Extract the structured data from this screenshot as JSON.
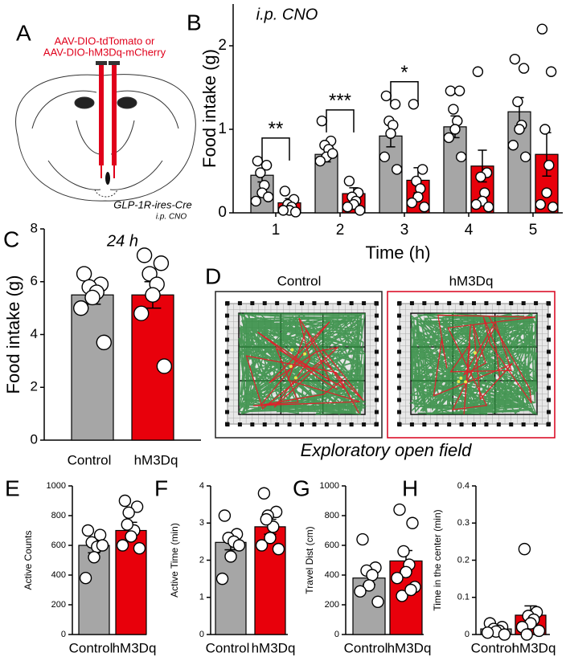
{
  "panels": [
    "A",
    "B",
    "C",
    "D",
    "E",
    "F",
    "G",
    "H"
  ],
  "panel_a": {
    "virus_labels": [
      "AAV-DIO-tdTomato or",
      "AAV-DIO-hM3Dq-mCherry"
    ],
    "mouse_line": "GLP-1R-ires-Cre",
    "treatment": "i.p. CNO"
  },
  "panel_d": {
    "groups": [
      "Control",
      "hM3Dq"
    ],
    "caption": "Exploratory open field"
  },
  "chart_data": [
    {
      "type": "grouped_bar",
      "subtitle": "i.p. CNO",
      "x_label": "Time (h)",
      "y_label": "Food intake (g)",
      "categories": [
        "1",
        "2",
        "3",
        "4",
        "5"
      ],
      "annotations": [
        "**",
        "***",
        "*",
        null,
        null
      ],
      "ylim": [
        0,
        2.5
      ],
      "yticks": [
        0,
        1,
        2
      ],
      "series": [
        {
          "color": "#a6a6a6",
          "values": [
            0.45,
            0.7,
            0.92,
            1.03,
            1.21
          ],
          "errors": [
            0.08,
            0.09,
            0.13,
            0.13,
            0.17
          ],
          "points": [
            [
              0.62,
              0.57,
              0.48,
              0.33,
              0.24,
              0.14,
              0.19
            ],
            [
              1.1,
              0.86,
              0.81,
              0.76,
              0.67,
              0.62,
              0.71
            ],
            [
              1.4,
              1.3,
              1.1,
              1.05,
              0.95,
              0.67,
              0.52
            ],
            [
              1.46,
              1.46,
              1.24,
              1.1,
              1.0,
              0.9,
              0.67
            ],
            [
              1.84,
              1.73,
              1.33,
              1.05,
              1.0,
              0.81,
              0.67
            ]
          ]
        },
        {
          "color": "#e8000b",
          "values": [
            0.12,
            0.23,
            0.39,
            0.56,
            0.7
          ],
          "errors": [
            0.05,
            0.07,
            0.15,
            0.19,
            0.26
          ],
          "points": [
            [
              0.26,
              0.16,
              0.1,
              0.07,
              0.03,
              0.03,
              0.01
            ],
            [
              0.38,
              0.24,
              0.19,
              0.14,
              0.1,
              0.07,
              0.03
            ],
            [
              1.3,
              0.52,
              0.38,
              0.29,
              0.19,
              0.12,
              0.07
            ],
            [
              1.69,
              0.48,
              0.43,
              0.24,
              0.14,
              0.1,
              0.07
            ],
            [
              2.2,
              1.69,
              1.0,
              0.57,
              0.24,
              0.1,
              0.07
            ]
          ]
        }
      ]
    },
    {
      "type": "bar",
      "title": "24 h",
      "y_label": "Food intake (g)",
      "categories": [
        "Control",
        "hM3Dq"
      ],
      "colors": [
        "#a6a6a6",
        "#e8000b"
      ],
      "values": [
        5.5,
        5.5
      ],
      "errors": [
        0.35,
        0.5
      ],
      "points": [
        [
          6.3,
          5.9,
          5.8,
          5.6,
          5.4,
          5.0,
          3.7
        ],
        [
          7.0,
          6.7,
          6.3,
          5.9,
          5.5,
          4.8,
          2.8
        ]
      ],
      "ylim": [
        0,
        8
      ],
      "yticks": [
        0,
        2,
        4,
        6,
        8
      ]
    },
    {
      "type": "bar",
      "y_label": "Active Counts",
      "categories": [
        "Control",
        "hM3Dq"
      ],
      "colors": [
        "#a6a6a6",
        "#e8000b"
      ],
      "values": [
        600,
        700
      ],
      "errors": [
        50,
        55
      ],
      "points": [
        [
          700,
          670,
          620,
          590,
          520,
          380,
          600
        ],
        [
          900,
          860,
          820,
          700,
          660,
          600,
          580,
          740
        ]
      ],
      "ylim": [
        0,
        1000
      ],
      "yticks": [
        0,
        200,
        400,
        600,
        800,
        1000
      ]
    },
    {
      "type": "bar",
      "y_label": "Active Time (min)",
      "categories": [
        "Control",
        "hM3Dq"
      ],
      "colors": [
        "#a6a6a6",
        "#e8000b"
      ],
      "values": [
        2.48,
        2.9
      ],
      "errors": [
        0.2,
        0.2
      ],
      "points": [
        [
          3.2,
          2.7,
          2.6,
          2.5,
          2.1,
          1.5,
          2.4
        ],
        [
          3.8,
          3.3,
          3.2,
          2.9,
          2.6,
          2.4,
          2.3,
          3.1
        ]
      ],
      "ylim": [
        0,
        4
      ],
      "yticks": [
        0,
        1,
        2,
        3,
        4
      ]
    },
    {
      "type": "bar",
      "y_label": "Travel Dist (cm)",
      "categories": [
        "Control",
        "hM3Dq"
      ],
      "colors": [
        "#a6a6a6",
        "#e8000b"
      ],
      "values": [
        380,
        495
      ],
      "errors": [
        45,
        70
      ],
      "points": [
        [
          640,
          450,
          430,
          400,
          330,
          290,
          220
        ],
        [
          840,
          750,
          560,
          470,
          420,
          380,
          320,
          260,
          300
        ]
      ],
      "ylim": [
        0,
        1000
      ],
      "yticks": [
        0,
        200,
        400,
        600,
        800,
        1000
      ]
    },
    {
      "type": "bar",
      "y_label": "Time in the center (min)",
      "categories": [
        "Control",
        "hM3Dq"
      ],
      "colors": [
        "#a6a6a6",
        "#e8000b"
      ],
      "values": [
        0.015,
        0.052
      ],
      "errors": [
        0.005,
        0.025
      ],
      "points": [
        [
          0.03,
          0.02,
          0.015,
          0.01,
          0.008,
          0.005,
          0.0
        ],
        [
          0.23,
          0.06,
          0.05,
          0.04,
          0.03,
          0.02,
          0.01,
          0.0
        ]
      ],
      "ylim": [
        0,
        0.4
      ],
      "yticks": [
        0,
        0.1,
        0.2,
        0.3,
        0.4
      ]
    }
  ]
}
